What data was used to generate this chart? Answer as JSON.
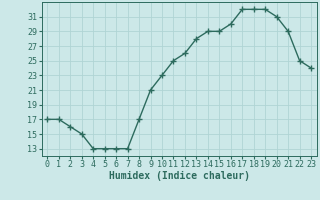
{
  "x": [
    0,
    1,
    2,
    3,
    4,
    5,
    6,
    7,
    8,
    9,
    10,
    11,
    12,
    13,
    14,
    15,
    16,
    17,
    18,
    19,
    20,
    21,
    22,
    23
  ],
  "y": [
    17,
    17,
    16,
    15,
    13,
    13,
    13,
    13,
    17,
    21,
    23,
    25,
    26,
    28,
    29,
    29,
    30,
    32,
    32,
    32,
    31,
    29,
    25,
    24
  ],
  "line_color": "#2d6b5e",
  "marker": "+",
  "bg_color": "#cce8e8",
  "grid_color": "#b0d4d4",
  "xlabel": "Humidex (Indice chaleur)",
  "ylim": [
    12,
    33
  ],
  "xlim": [
    -0.5,
    23.5
  ],
  "yticks": [
    13,
    15,
    17,
    19,
    21,
    23,
    25,
    27,
    29,
    31
  ],
  "xticks": [
    0,
    1,
    2,
    3,
    4,
    5,
    6,
    7,
    8,
    9,
    10,
    11,
    12,
    13,
    14,
    15,
    16,
    17,
    18,
    19,
    20,
    21,
    22,
    23
  ],
  "xtick_labels": [
    "0",
    "1",
    "2",
    "3",
    "4",
    "5",
    "6",
    "7",
    "8",
    "9",
    "10",
    "11",
    "12",
    "13",
    "14",
    "15",
    "16",
    "17",
    "18",
    "19",
    "20",
    "21",
    "22",
    "23"
  ],
  "tick_color": "#2d6b5e",
  "label_fontsize": 7,
  "tick_fontsize": 6,
  "line_width": 1.0,
  "marker_size": 4,
  "markeredgewidth": 1.0
}
